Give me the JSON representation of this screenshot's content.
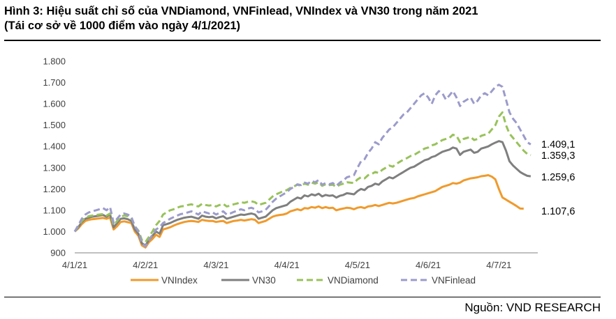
{
  "header": {
    "title": "Hình 3: Hiệu suất chỉ số của VNDiamond, VNFinlead, VNIndex và VN30 trong năm 2021",
    "subtitle": "(Tái cơ sở về 1000 điểm vào ngày 4/1/2021)"
  },
  "footer": {
    "source": "Nguồn: VND RESEARCH"
  },
  "colors": {
    "VNIndex": "#F09A2C",
    "VN30": "#7F7F7F",
    "VNDiamond": "#98C25A",
    "VNFinlead": "#9B9BCC"
  },
  "chart_data": {
    "type": "line",
    "ylim": [
      900,
      1800
    ],
    "yticks": [
      "1.800",
      "1.700",
      "1.600",
      "1.500",
      "1.400",
      "1.300",
      "1.200",
      "1.100",
      "1.000",
      "900"
    ],
    "xlim": [
      0,
      131
    ],
    "xticks": [
      "4/1/21",
      "4/2/21",
      "4/3/21",
      "4/4/21",
      "4/5/21",
      "4/6/21",
      "4/7/21"
    ],
    "xtick_index": [
      0,
      20,
      40,
      60,
      80,
      100,
      120
    ],
    "grid": false,
    "legend": "bottom",
    "series": [
      {
        "name": "VNIndex",
        "style": "solid",
        "end_label": "1.107,6",
        "values": [
          1000,
          1015,
          1035,
          1050,
          1055,
          1058,
          1060,
          1062,
          1064,
          1060,
          1066,
          1010,
          1025,
          1045,
          1048,
          1044,
          1040,
          1000,
          980,
          935,
          925,
          950,
          965,
          985,
          975,
          1010,
          1015,
          1020,
          1028,
          1035,
          1040,
          1045,
          1048,
          1050,
          1048,
          1045,
          1055,
          1052,
          1050,
          1050,
          1045,
          1048,
          1050,
          1040,
          1045,
          1050,
          1052,
          1055,
          1052,
          1055,
          1058,
          1055,
          1040,
          1045,
          1050,
          1060,
          1070,
          1075,
          1078,
          1080,
          1085,
          1095,
          1100,
          1105,
          1100,
          1110,
          1108,
          1115,
          1112,
          1118,
          1110,
          1115,
          1110,
          1112,
          1100,
          1105,
          1108,
          1112,
          1110,
          1105,
          1112,
          1115,
          1110,
          1118,
          1120,
          1125,
          1120,
          1125,
          1130,
          1135,
          1132,
          1135,
          1140,
          1145,
          1150,
          1155,
          1158,
          1165,
          1170,
          1175,
          1180,
          1185,
          1190,
          1200,
          1210,
          1215,
          1220,
          1228,
          1225,
          1230,
          1240,
          1245,
          1250,
          1252,
          1255,
          1260,
          1262,
          1265,
          1258,
          1245,
          1200,
          1160,
          1150,
          1140,
          1130,
          1120,
          1108,
          1107.6
        ]
      },
      {
        "name": "VN30",
        "style": "solid",
        "end_label": "1.259,6",
        "values": [
          1000,
          1020,
          1045,
          1060,
          1065,
          1070,
          1072,
          1075,
          1078,
          1070,
          1080,
          1020,
          1040,
          1060,
          1062,
          1058,
          1050,
          1010,
          990,
          945,
          935,
          960,
          980,
          1000,
          990,
          1030,
          1035,
          1040,
          1048,
          1055,
          1060,
          1065,
          1068,
          1070,
          1065,
          1060,
          1075,
          1070,
          1068,
          1070,
          1062,
          1068,
          1072,
          1060,
          1065,
          1070,
          1075,
          1080,
          1078,
          1082,
          1085,
          1080,
          1060,
          1065,
          1070,
          1085,
          1100,
          1110,
          1115,
          1120,
          1125,
          1140,
          1150,
          1160,
          1155,
          1170,
          1165,
          1175,
          1170,
          1178,
          1165,
          1172,
          1168,
          1170,
          1160,
          1168,
          1172,
          1180,
          1178,
          1175,
          1190,
          1200,
          1195,
          1210,
          1215,
          1225,
          1220,
          1235,
          1245,
          1255,
          1250,
          1260,
          1270,
          1280,
          1290,
          1300,
          1305,
          1315,
          1325,
          1335,
          1340,
          1350,
          1355,
          1365,
          1375,
          1380,
          1385,
          1395,
          1390,
          1360,
          1375,
          1380,
          1385,
          1370,
          1375,
          1390,
          1395,
          1400,
          1410,
          1418,
          1425,
          1420,
          1380,
          1330,
          1310,
          1295,
          1280,
          1270,
          1262,
          1259.6
        ]
      },
      {
        "name": "VNDiamond",
        "style": "dashed",
        "end_label": "1.359,3",
        "values": [
          1000,
          1025,
          1050,
          1065,
          1072,
          1075,
          1078,
          1080,
          1082,
          1075,
          1085,
          1030,
          1050,
          1070,
          1075,
          1072,
          1065,
          1025,
          1005,
          960,
          950,
          975,
          1000,
          1030,
          1050,
          1080,
          1090,
          1100,
          1105,
          1112,
          1118,
          1120,
          1125,
          1128,
          1122,
          1118,
          1130,
          1125,
          1122,
          1125,
          1118,
          1125,
          1130,
          1118,
          1122,
          1128,
          1132,
          1138,
          1135,
          1140,
          1142,
          1138,
          1125,
          1130,
          1135,
          1150,
          1165,
          1175,
          1182,
          1190,
          1195,
          1205,
          1212,
          1220,
          1215,
          1225,
          1220,
          1230,
          1225,
          1232,
          1215,
          1222,
          1218,
          1220,
          1210,
          1220,
          1225,
          1232,
          1230,
          1228,
          1245,
          1255,
          1250,
          1265,
          1270,
          1280,
          1275,
          1290,
          1300,
          1310,
          1305,
          1318,
          1328,
          1338,
          1345,
          1355,
          1360,
          1370,
          1380,
          1390,
          1395,
          1405,
          1410,
          1420,
          1430,
          1435,
          1440,
          1455,
          1450,
          1420,
          1435,
          1440,
          1445,
          1430,
          1435,
          1450,
          1455,
          1460,
          1480,
          1500,
          1540,
          1560,
          1500,
          1460,
          1440,
          1420,
          1400,
          1380,
          1365,
          1359.3
        ]
      },
      {
        "name": "VNFinlead",
        "style": "dashed",
        "end_label": "1.409,1",
        "values": [
          1000,
          1030,
          1060,
          1080,
          1090,
          1095,
          1100,
          1105,
          1110,
          1100,
          1115,
          1040,
          1060,
          1080,
          1085,
          1080,
          1070,
          1025,
          1000,
          945,
          930,
          960,
          985,
          1010,
          1020,
          1040,
          1050,
          1060,
          1068,
          1075,
          1082,
          1085,
          1090,
          1095,
          1088,
          1080,
          1095,
          1090,
          1085,
          1090,
          1080,
          1088,
          1095,
          1080,
          1085,
          1092,
          1098,
          1105,
          1100,
          1108,
          1112,
          1105,
          1090,
          1095,
          1102,
          1120,
          1140,
          1155,
          1165,
          1175,
          1185,
          1200,
          1210,
          1222,
          1218,
          1230,
          1225,
          1238,
          1232,
          1242,
          1220,
          1228,
          1222,
          1228,
          1215,
          1230,
          1240,
          1255,
          1260,
          1265,
          1300,
          1330,
          1340,
          1370,
          1390,
          1420,
          1410,
          1440,
          1460,
          1480,
          1490,
          1510,
          1530,
          1550,
          1560,
          1580,
          1600,
          1620,
          1640,
          1650,
          1630,
          1600,
          1640,
          1660,
          1650,
          1620,
          1640,
          1660,
          1630,
          1590,
          1610,
          1620,
          1630,
          1600,
          1615,
          1640,
          1650,
          1640,
          1660,
          1680,
          1690,
          1680,
          1620,
          1560,
          1530,
          1510,
          1480,
          1450,
          1420,
          1409.1
        ]
      }
    ]
  }
}
